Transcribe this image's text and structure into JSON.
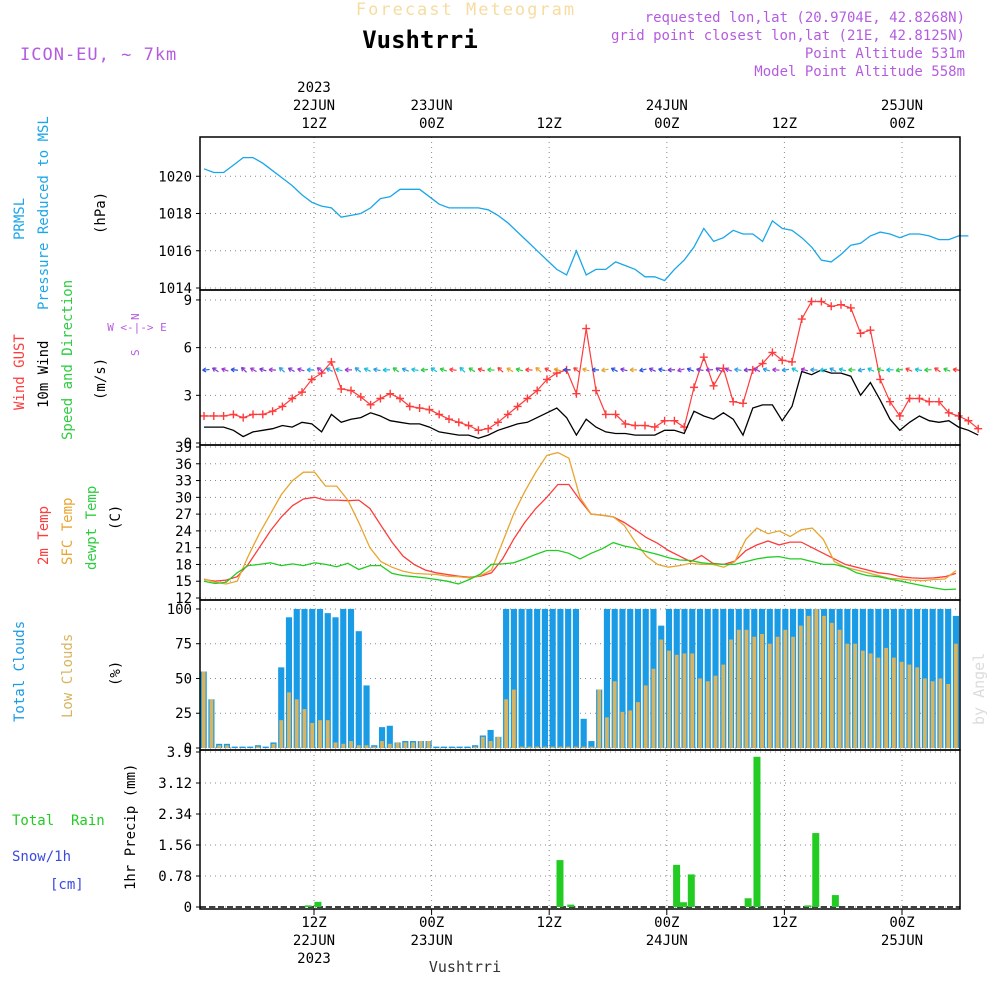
{
  "header": {
    "watermark": "Forecast Meteogram",
    "model": "ICON-EU, ~ 7km",
    "place": "Vushtrri",
    "requested": "requested lon,lat (20.9704E, 42.8268N)",
    "gridpoint": "grid point closest lon,lat (21E, 42.8125N)",
    "point_alt": "Point Altitude 531m",
    "model_alt": "Model Point Altitude 558m",
    "credit": "by Angel"
  },
  "colors": {
    "pressure": "#1aa6e8",
    "gust": "#ff3b3b",
    "wind": "#000000",
    "dir": "#2ecc40",
    "t2m": "#ff3b3b",
    "sfc": "#e8a530",
    "dew": "#22cc22",
    "total_clouds": "#1a9be6",
    "low_clouds": "#d8b460",
    "rain": "#22cc22",
    "snow": "#3a4ae0",
    "purple": "#b45ce0"
  },
  "time_axis": {
    "top": [
      {
        "t": 15,
        "lines": [
          "2023",
          "22JUN",
          "12Z"
        ]
      },
      {
        "t": 27,
        "lines": [
          "23JUN",
          "00Z"
        ]
      },
      {
        "t": 39,
        "lines": [
          "12Z"
        ]
      },
      {
        "t": 51,
        "lines": [
          "24JUN",
          "00Z"
        ]
      },
      {
        "t": 63,
        "lines": [
          "12Z"
        ]
      },
      {
        "t": 75,
        "lines": [
          "25JUN",
          "00Z"
        ]
      }
    ],
    "bottom": [
      {
        "t": 15,
        "lines": [
          "12Z",
          "22JUN",
          "2023"
        ]
      },
      {
        "t": 27,
        "lines": [
          "00Z",
          "23JUN"
        ]
      },
      {
        "t": 39,
        "lines": [
          "12Z"
        ]
      },
      {
        "t": 51,
        "lines": [
          "00Z",
          "24JUN"
        ]
      },
      {
        "t": 63,
        "lines": [
          "12Z"
        ]
      },
      {
        "t": 75,
        "lines": [
          "00Z",
          "25JUN"
        ]
      }
    ],
    "footer": "Vushtrri"
  },
  "chart_data": [
    {
      "type": "line",
      "title": "PRMSL Pressure Reduced to MSL",
      "label_lines": [
        [
          "PRMSL"
        ],
        [
          "Pressure Reduced to MSL"
        ]
      ],
      "unit": "(hPa)",
      "ylim": [
        1014,
        1022
      ],
      "yticks": [
        1014,
        1016,
        1018,
        1020
      ],
      "series": [
        {
          "name": "PRMSL",
          "values": [
            1020.4,
            1020.2,
            1020.2,
            1020.6,
            1021.0,
            1021.0,
            1020.7,
            1020.3,
            1019.9,
            1019.5,
            1019.0,
            1018.6,
            1018.4,
            1018.3,
            1017.8,
            1017.9,
            1018.0,
            1018.3,
            1018.8,
            1018.9,
            1019.3,
            1019.3,
            1019.3,
            1018.9,
            1018.5,
            1018.3,
            1018.3,
            1018.3,
            1018.3,
            1018.2,
            1017.9,
            1017.5,
            1017.0,
            1016.5,
            1016.0,
            1015.5,
            1015.0,
            1014.7,
            1016.0,
            1014.7,
            1015.0,
            1015.0,
            1015.4,
            1015.2,
            1015.0,
            1014.6,
            1014.6,
            1014.4,
            1015.0,
            1015.5,
            1016.2,
            1017.2,
            1016.5,
            1016.7,
            1017.1,
            1016.9,
            1016.9,
            1016.5,
            1017.6,
            1017.2,
            1017.1,
            1016.7,
            1016.2,
            1015.5,
            1015.4,
            1015.8,
            1016.3,
            1016.4,
            1016.8,
            1017.0,
            1016.9,
            1016.7,
            1016.9,
            1016.9,
            1016.8,
            1016.6,
            1016.6,
            1016.8,
            1016.8
          ]
        }
      ]
    },
    {
      "type": "line",
      "title": "Wind GUST / 10m Wind Speed and Direction",
      "label_lines": [
        [
          "Wind GUST"
        ],
        [
          "10m Wind"
        ],
        [
          "Speed and Direction"
        ]
      ],
      "unit": "(m/s)",
      "compass": [
        "N",
        "W <-|-> E",
        "S"
      ],
      "ylim": [
        0,
        9.5
      ],
      "yticks": [
        0,
        3,
        6,
        9
      ],
      "series": [
        {
          "name": "Wind GUST",
          "values": [
            1.7,
            1.7,
            1.7,
            1.8,
            1.6,
            1.8,
            1.8,
            2.0,
            2.3,
            2.8,
            3.2,
            4.0,
            4.4,
            5.1,
            3.4,
            3.3,
            2.9,
            2.4,
            2.8,
            3.1,
            2.8,
            2.3,
            2.2,
            2.1,
            1.8,
            1.5,
            1.3,
            1.1,
            0.8,
            0.9,
            1.3,
            1.8,
            2.3,
            2.8,
            3.3,
            4.0,
            4.4,
            4.6,
            3.1,
            7.2,
            3.3,
            1.8,
            1.8,
            1.2,
            1.1,
            1.1,
            1.0,
            1.4,
            1.4,
            1.0,
            3.5,
            5.4,
            3.6,
            4.7,
            2.6,
            2.5,
            4.6,
            5.0,
            5.7,
            5.2,
            5.1,
            7.8,
            8.9,
            8.9,
            8.6,
            8.7,
            8.5,
            6.9,
            7.1,
            4.0,
            2.6,
            1.7,
            2.8,
            2.8,
            2.6,
            2.6,
            1.9,
            1.7,
            1.4,
            0.9
          ]
        },
        {
          "name": "10m Wind",
          "values": [
            1.0,
            1.0,
            1.0,
            0.8,
            0.4,
            0.7,
            0.8,
            0.9,
            1.1,
            1.0,
            1.3,
            1.2,
            0.7,
            1.8,
            1.3,
            1.5,
            1.6,
            1.9,
            1.7,
            1.4,
            1.3,
            1.2,
            1.2,
            1.0,
            0.7,
            0.6,
            0.5,
            0.5,
            0.3,
            0.5,
            0.8,
            1.0,
            1.2,
            1.3,
            1.6,
            1.9,
            2.2,
            1.6,
            0.5,
            1.5,
            1.0,
            0.7,
            0.6,
            0.6,
            0.5,
            0.5,
            0.5,
            0.8,
            0.8,
            0.6,
            2.0,
            1.7,
            1.5,
            1.9,
            1.5,
            0.5,
            2.2,
            2.4,
            2.4,
            1.4,
            2.3,
            4.5,
            4.3,
            4.6,
            4.4,
            4.4,
            4.2,
            3.0,
            3.8,
            2.7,
            1.5,
            0.8,
            1.3,
            1.7,
            1.4,
            1.3,
            1.4,
            1.0,
            0.8,
            0.5
          ]
        }
      ]
    },
    {
      "type": "line",
      "title": "2m Temp / SFC Temp / dewpt Temp",
      "label_lines": [
        [
          "2m Temp"
        ],
        [
          "SFC Temp"
        ],
        [
          "dewpt Temp"
        ]
      ],
      "unit": "(C)",
      "ylim": [
        12,
        39
      ],
      "yticks": [
        12,
        15,
        18,
        21,
        24,
        27,
        30,
        33,
        36,
        39
      ],
      "series": [
        {
          "name": "2m Temp",
          "values": [
            15.3,
            15.0,
            15.2,
            15.8,
            18.0,
            21.0,
            24.0,
            26.5,
            28.5,
            29.7,
            30.0,
            29.5,
            29.5,
            29.4,
            29.5,
            28.0,
            25.0,
            22.0,
            19.5,
            18.0,
            17.0,
            16.5,
            16.2,
            15.9,
            15.7,
            15.9,
            16.5,
            19.0,
            22.5,
            25.5,
            28.0,
            30.0,
            32.3,
            32.3,
            29.5,
            27.0,
            26.8,
            26.5,
            25.5,
            24.2,
            22.8,
            21.8,
            20.5,
            19.5,
            18.5,
            19.6,
            18.2,
            18.0,
            18.6,
            20.5,
            21.5,
            22.2,
            21.5,
            22.0,
            22.0,
            21.0,
            20.0,
            19.0,
            18.0,
            17.5,
            17.0,
            16.5,
            16.3,
            15.8,
            15.6,
            15.5,
            15.6,
            15.8,
            16.4
          ]
        },
        {
          "name": "SFC Temp",
          "values": [
            15.4,
            14.8,
            14.5,
            15.0,
            19.5,
            23.5,
            27.0,
            30.5,
            33.0,
            34.5,
            34.5,
            32.0,
            32.0,
            29.5,
            25.5,
            21.0,
            18.5,
            17.5,
            16.8,
            16.4,
            16.3,
            16.2,
            15.9,
            15.8,
            15.6,
            16.0,
            17.0,
            22.0,
            27.0,
            31.0,
            34.5,
            37.5,
            38.0,
            37.0,
            30.0,
            27.0,
            26.8,
            26.5,
            25.0,
            22.0,
            19.5,
            18.0,
            17.5,
            17.8,
            18.2,
            18.0,
            18.0,
            17.5,
            18.5,
            22.5,
            24.5,
            23.5,
            24.0,
            23.0,
            24.2,
            24.5,
            22.5,
            18.5,
            17.5,
            17.0,
            16.5,
            16.0,
            15.5,
            15.4,
            15.2,
            15.1,
            15.3,
            15.4,
            16.9
          ]
        },
        {
          "name": "dewpt Temp",
          "values": [
            15.0,
            14.6,
            14.8,
            16.5,
            17.8,
            18.0,
            18.3,
            17.8,
            18.1,
            17.8,
            18.3,
            18.0,
            17.6,
            18.2,
            17.1,
            17.8,
            17.8,
            16.4,
            16.0,
            15.8,
            15.6,
            15.3,
            15.0,
            14.5,
            15.3,
            16.3,
            18.0,
            18.1,
            18.3,
            19.0,
            19.8,
            20.5,
            20.5,
            20.0,
            19.0,
            20.0,
            20.8,
            21.9,
            21.3,
            20.9,
            20.3,
            19.8,
            19.2,
            18.8,
            18.7,
            18.3,
            18.1,
            18.0,
            18.0,
            18.5,
            19.0,
            19.3,
            19.4,
            19.0,
            19.0,
            18.5,
            18.0,
            18.0,
            17.5,
            16.5,
            16.0,
            15.8,
            15.4,
            15.0,
            14.6,
            14.2,
            13.8,
            13.5,
            13.6
          ]
        }
      ]
    },
    {
      "type": "bar",
      "title": "Total Clouds / Low Clouds",
      "label_lines": [
        [
          "Total Clouds"
        ],
        [
          "Low Clouds"
        ]
      ],
      "unit": "(%)",
      "ylim": [
        0,
        105
      ],
      "yticks": [
        0,
        25,
        50,
        75,
        100
      ],
      "series": [
        {
          "name": "Total Clouds",
          "values": [
            55,
            35,
            3,
            3,
            1,
            1,
            1,
            2,
            1,
            4,
            58,
            94,
            100,
            100,
            100,
            100,
            97,
            94,
            100,
            100,
            84,
            45,
            2,
            15,
            16,
            4,
            5,
            5,
            5,
            5,
            1,
            1,
            1,
            1,
            1,
            2,
            9,
            13,
            8,
            100,
            100,
            100,
            100,
            100,
            100,
            100,
            100,
            100,
            100,
            21,
            5,
            42,
            100,
            100,
            100,
            100,
            100,
            100,
            100,
            88,
            100,
            100,
            100,
            100,
            100,
            100,
            100,
            100,
            100,
            100,
            100,
            100,
            100,
            100,
            100,
            100,
            100,
            100,
            100,
            100,
            100,
            100,
            100,
            100,
            100,
            100,
            100,
            100,
            100,
            100,
            100,
            100,
            100,
            100,
            100,
            100,
            100,
            95
          ]
        },
        {
          "name": "Low Clouds",
          "values": [
            55,
            35,
            2,
            2,
            0,
            0,
            0,
            1,
            0,
            3,
            20,
            40,
            35,
            28,
            18,
            20,
            20,
            4,
            3,
            5,
            2,
            2,
            1,
            5,
            3,
            4,
            4,
            4,
            5,
            5,
            0,
            0,
            0,
            0,
            0,
            1,
            8,
            5,
            8,
            35,
            42,
            1,
            1,
            1,
            1,
            1,
            1,
            1,
            1,
            1,
            1,
            42,
            22,
            48,
            26,
            27,
            33,
            45,
            57,
            78,
            70,
            67,
            68,
            68,
            50,
            48,
            52,
            60,
            78,
            85,
            85,
            80,
            82,
            75,
            80,
            85,
            80,
            88,
            95,
            100,
            95,
            90,
            85,
            75,
            75,
            70,
            68,
            65,
            72,
            65,
            62,
            60,
            58,
            50,
            48,
            50,
            46,
            75
          ]
        }
      ]
    },
    {
      "type": "bar",
      "title": "Total Rain Snow/1h",
      "label_lines": [
        [
          "Total  Rain"
        ],
        [
          "Snow/1h"
        ],
        [
          "[cm]"
        ]
      ],
      "unit": "1hr Precip (mm)",
      "ylim": [
        0,
        3.9
      ],
      "yticks": [
        0,
        0.78,
        1.56,
        2.34,
        3.12,
        3.9
      ],
      "series": [
        {
          "name": "Total Rain",
          "values": [
            0,
            0,
            0,
            0,
            0,
            0,
            0,
            0,
            0,
            0,
            0,
            0,
            0,
            0,
            0,
            0,
            0,
            0,
            0,
            0,
            0,
            0,
            0,
            0,
            0,
            0,
            0,
            0,
            0,
            0,
            0,
            0,
            0,
            0,
            0,
            0,
            0,
            0,
            0,
            0,
            0,
            0,
            0,
            0,
            0,
            0,
            0,
            0,
            0,
            0,
            0,
            0,
            0,
            0,
            0,
            0,
            0,
            0,
            0,
            0,
            0,
            0,
            0,
            0,
            0,
            0,
            0,
            0,
            0,
            0,
            0,
            0,
            0,
            0,
            0,
            0,
            0,
            0,
            0,
            0
          ],
          "bars": [
            {
              "t": 14.4,
              "v": 0.04
            },
            {
              "t": 15.4,
              "v": 0.13
            },
            {
              "t": 40.1,
              "v": 1.18
            },
            {
              "t": 41.2,
              "v": 0.06
            },
            {
              "t": 52.0,
              "v": 1.06
            },
            {
              "t": 52.7,
              "v": 0.12
            },
            {
              "t": 53.5,
              "v": 0.82
            },
            {
              "t": 59.3,
              "v": 0.22
            },
            {
              "t": 60.2,
              "v": 3.78
            },
            {
              "t": 65.4,
              "v": 0.04
            },
            {
              "t": 66.2,
              "v": 1.86
            },
            {
              "t": 68.2,
              "v": 0.3
            }
          ]
        }
      ]
    }
  ]
}
